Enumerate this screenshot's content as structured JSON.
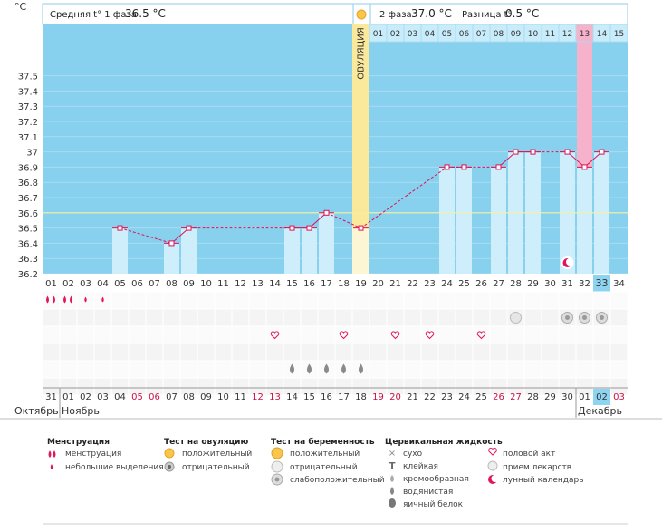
{
  "header": {
    "phase1_label": "Средняя t° 1 фаза",
    "phase1_value": "36.5 °C",
    "phase2_label": "2 фаза",
    "phase2_value": "37.0 °C",
    "diff_label": "Разница t°",
    "diff_value": "0.5 °C",
    "unit": "°C",
    "ovulation_label": "ОВУЛЯЦИЯ"
  },
  "chart_data": {
    "type": "line",
    "ylim": [
      36.2,
      37.5
    ],
    "y_ticks": [
      "36.2",
      "36.3",
      "36.4",
      "36.5",
      "36.6",
      "36.7",
      "36.8",
      "36.9",
      "37",
      "37.1",
      "37.2",
      "37.3",
      "37.4",
      "37.5"
    ],
    "coverline": 36.6,
    "ovulation_day": 19,
    "current_cycle_day": 33,
    "cycle_days": [
      "01",
      "02",
      "03",
      "04",
      "05",
      "06",
      "07",
      "08",
      "09",
      "10",
      "11",
      "12",
      "13",
      "14",
      "15",
      "16",
      "17",
      "18",
      "19",
      "20",
      "21",
      "22",
      "23",
      "24",
      "25",
      "26",
      "27",
      "28",
      "29",
      "30",
      "31",
      "32",
      "33",
      "34"
    ],
    "post_ovulation_days": [
      "01",
      "02",
      "03",
      "04",
      "05",
      "06",
      "07",
      "08",
      "09",
      "10",
      "11",
      "12",
      "13",
      "14",
      "15"
    ],
    "highlighted_post_day": "13",
    "calendar_dates": [
      "31",
      "01",
      "02",
      "03",
      "04",
      "05",
      "06",
      "07",
      "08",
      "09",
      "10",
      "11",
      "12",
      "13",
      "14",
      "15",
      "16",
      "17",
      "18",
      "19",
      "20",
      "21",
      "22",
      "23",
      "24",
      "25",
      "26",
      "27",
      "28",
      "29",
      "30",
      "01",
      "02",
      "03"
    ],
    "weekend_indices": [
      5,
      6,
      12,
      13,
      19,
      20,
      26,
      27,
      33
    ],
    "months": [
      {
        "name": "Октябрь",
        "day_index": 0
      },
      {
        "name": "Ноябрь",
        "day_index": 1
      },
      {
        "name": "Декабрь",
        "day_index": 31
      }
    ],
    "temperatures": [
      {
        "day": 5,
        "temp": 36.5
      },
      {
        "day": 8,
        "temp": 36.4
      },
      {
        "day": 9,
        "temp": 36.5
      },
      {
        "day": 15,
        "temp": 36.5
      },
      {
        "day": 16,
        "temp": 36.5
      },
      {
        "day": 17,
        "temp": 36.6
      },
      {
        "day": 19,
        "temp": 36.5
      },
      {
        "day": 24,
        "temp": 36.9
      },
      {
        "day": 25,
        "temp": 36.9
      },
      {
        "day": 27,
        "temp": 36.9
      },
      {
        "day": 28,
        "temp": 37.0
      },
      {
        "day": 29,
        "temp": 37.0
      },
      {
        "day": 31,
        "temp": 37.0
      },
      {
        "day": 32,
        "temp": 36.9
      },
      {
        "day": 33,
        "temp": 37.0
      }
    ],
    "solid_segments": [
      [
        8,
        9
      ],
      [
        15,
        16
      ],
      [
        16,
        17
      ],
      [
        27,
        28
      ],
      [
        28,
        29
      ],
      [
        31,
        32
      ],
      [
        32,
        33
      ]
    ],
    "markers": {
      "menstruation": [
        1,
        2
      ],
      "light_spotting": [
        3,
        4
      ],
      "ovulation_positive": [
        19
      ],
      "pregnancy_weak_positive": [
        31,
        32,
        33
      ],
      "pregnancy_negative": [
        28
      ],
      "intercourse": [
        14,
        18,
        21,
        23,
        26
      ],
      "fluid_watery": [
        15,
        16,
        17,
        18,
        19
      ],
      "lunar": [
        31
      ]
    }
  },
  "legend": {
    "menstruation": {
      "title": "Менструация",
      "items": [
        "менструация",
        "небольшие выделения"
      ]
    },
    "ovulation_test": {
      "title": "Тест на овуляцию",
      "items": [
        "положительный",
        "отрицательный"
      ]
    },
    "pregnancy_test": {
      "title": "Тест на беременность",
      "items": [
        "положительный",
        "отрицательный",
        "слабоположительный"
      ]
    },
    "cervical_fluid": {
      "title": "Цервикальная жидкость",
      "items": [
        "сухо",
        "клейкая",
        "кремообразная",
        "водянистая",
        "яичный белок"
      ]
    },
    "other": {
      "items": [
        "половой акт",
        "прием лекарств",
        "лунный календарь"
      ]
    }
  },
  "colors": {
    "plot_bg": "#87d0ee",
    "bar": "#cdeefa",
    "line": "#dd1155",
    "ovulation": "#fbe99b",
    "pink": "#f7b2cb",
    "weekend": "#cc1144",
    "accent": "#e0155a"
  }
}
